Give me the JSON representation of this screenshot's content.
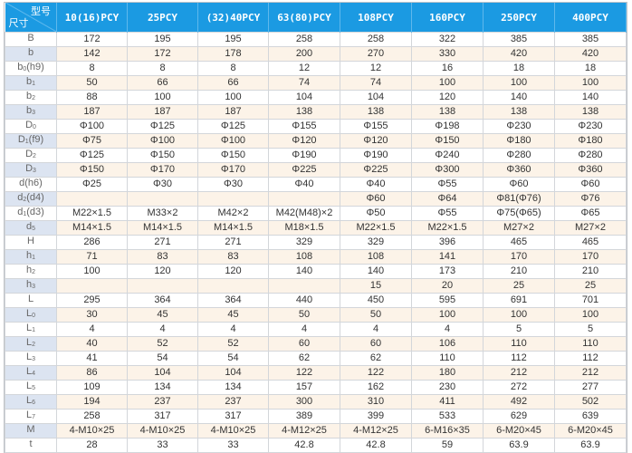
{
  "header": {
    "corner_top": "型号",
    "corner_bottom": "尺寸",
    "models": [
      "10(16)PCY",
      "25PCY",
      "(32)40PCY",
      "63(80)PCY",
      "108PCY",
      "160PCY",
      "250PCY",
      "400PCY"
    ]
  },
  "rows": [
    {
      "label": "B",
      "sub": "",
      "rest": "",
      "values": [
        "172",
        "195",
        "195",
        "258",
        "258",
        "322",
        "385",
        "385"
      ]
    },
    {
      "label": "b",
      "sub": "",
      "rest": "",
      "values": [
        "142",
        "172",
        "178",
        "200",
        "270",
        "330",
        "420",
        "420"
      ]
    },
    {
      "label": "b",
      "sub": "0",
      "rest": "(h9)",
      "values": [
        "8",
        "8",
        "8",
        "12",
        "12",
        "16",
        "18",
        "18"
      ]
    },
    {
      "label": "b",
      "sub": "1",
      "rest": "",
      "values": [
        "50",
        "66",
        "66",
        "74",
        "74",
        "100",
        "100",
        "100"
      ]
    },
    {
      "label": "b",
      "sub": "2",
      "rest": "",
      "values": [
        "88",
        "100",
        "100",
        "104",
        "104",
        "120",
        "140",
        "140"
      ]
    },
    {
      "label": "b",
      "sub": "3",
      "rest": "",
      "values": [
        "187",
        "187",
        "187",
        "138",
        "138",
        "138",
        "138",
        "138"
      ]
    },
    {
      "label": "D",
      "sub": "0",
      "rest": "",
      "values": [
        "Φ100",
        "Φ125",
        "Φ125",
        "Φ155",
        "Φ155",
        "Φ198",
        "Φ230",
        "Φ230"
      ]
    },
    {
      "label": "D",
      "sub": "1",
      "rest": "(f9)",
      "values": [
        "Φ75",
        "Φ100",
        "Φ100",
        "Φ120",
        "Φ120",
        "Φ150",
        "Φ180",
        "Φ180"
      ]
    },
    {
      "label": "D",
      "sub": "2",
      "rest": "",
      "values": [
        "Φ125",
        "Φ150",
        "Φ150",
        "Φ190",
        "Φ190",
        "Φ240",
        "Φ280",
        "Φ280"
      ]
    },
    {
      "label": "D",
      "sub": "3",
      "rest": "",
      "values": [
        "Φ150",
        "Φ170",
        "Φ170",
        "Φ225",
        "Φ225",
        "Φ300",
        "Φ360",
        "Φ360"
      ]
    },
    {
      "label": "d(h6)",
      "sub": "",
      "rest": "",
      "values": [
        "Φ25",
        "Φ30",
        "Φ30",
        "Φ40",
        "Φ40",
        "Φ55",
        "Φ60",
        "Φ60"
      ]
    },
    {
      "label": "d",
      "sub": "2",
      "rest": "(d4)",
      "values": [
        "",
        "",
        "",
        "",
        "Φ60",
        "Φ64",
        "Φ81(Φ76)",
        "Φ76"
      ]
    },
    {
      "label": "d",
      "sub": "1",
      "rest": "(d3)",
      "values": [
        "M22×1.5",
        "M33×2",
        "M42×2",
        "M42(M48)×2",
        "Φ50",
        "Φ55",
        "Φ75(Φ65)",
        "Φ65"
      ]
    },
    {
      "label": "d",
      "sub": "5",
      "rest": "",
      "values": [
        "M14×1.5",
        "M14×1.5",
        "M14×1.5",
        "M18×1.5",
        "M22×1.5",
        "M22×1.5",
        "M27×2",
        "M27×2"
      ]
    },
    {
      "label": "H",
      "sub": "",
      "rest": "",
      "values": [
        "286",
        "271",
        "271",
        "329",
        "329",
        "396",
        "465",
        "465"
      ]
    },
    {
      "label": "h",
      "sub": "1",
      "rest": "",
      "values": [
        "71",
        "83",
        "83",
        "108",
        "108",
        "141",
        "170",
        "170"
      ]
    },
    {
      "label": "h",
      "sub": "2",
      "rest": "",
      "values": [
        "100",
        "120",
        "120",
        "140",
        "140",
        "173",
        "210",
        "210"
      ]
    },
    {
      "label": "h",
      "sub": "3",
      "rest": "",
      "values": [
        "",
        "",
        "",
        "",
        "15",
        "20",
        "25",
        "25"
      ]
    },
    {
      "label": "L",
      "sub": "",
      "rest": "",
      "values": [
        "295",
        "364",
        "364",
        "440",
        "450",
        "595",
        "691",
        "701"
      ]
    },
    {
      "label": "L",
      "sub": "0",
      "rest": "",
      "values": [
        "30",
        "45",
        "45",
        "50",
        "50",
        "100",
        "100",
        "100"
      ]
    },
    {
      "label": "L",
      "sub": "1",
      "rest": "",
      "values": [
        "4",
        "4",
        "4",
        "4",
        "4",
        "4",
        "5",
        "5"
      ]
    },
    {
      "label": "L",
      "sub": "2",
      "rest": "",
      "values": [
        "40",
        "52",
        "52",
        "60",
        "60",
        "106",
        "110",
        "110"
      ]
    },
    {
      "label": "L",
      "sub": "3",
      "rest": "",
      "values": [
        "41",
        "54",
        "54",
        "62",
        "62",
        "110",
        "112",
        "112"
      ]
    },
    {
      "label": "L",
      "sub": "4",
      "rest": "",
      "values": [
        "86",
        "104",
        "104",
        "122",
        "122",
        "180",
        "212",
        "212"
      ]
    },
    {
      "label": "L",
      "sub": "5",
      "rest": "",
      "values": [
        "109",
        "134",
        "134",
        "157",
        "162",
        "230",
        "272",
        "277"
      ]
    },
    {
      "label": "L",
      "sub": "6",
      "rest": "",
      "values": [
        "194",
        "237",
        "237",
        "300",
        "310",
        "411",
        "492",
        "502"
      ]
    },
    {
      "label": "L",
      "sub": "7",
      "rest": "",
      "values": [
        "258",
        "317",
        "317",
        "389",
        "399",
        "533",
        "629",
        "639"
      ]
    },
    {
      "label": "M",
      "sub": "",
      "rest": "",
      "values": [
        "4-M10×25",
        "4-M10×25",
        "4-M10×25",
        "4-M12×25",
        "4-M12×25",
        "6-M16×35",
        "6-M20×45",
        "6-M20×45"
      ]
    },
    {
      "label": "t",
      "sub": "",
      "rest": "",
      "values": [
        "28",
        "33",
        "33",
        "42.8",
        "42.8",
        "59",
        "63.9",
        "63.9"
      ]
    }
  ]
}
